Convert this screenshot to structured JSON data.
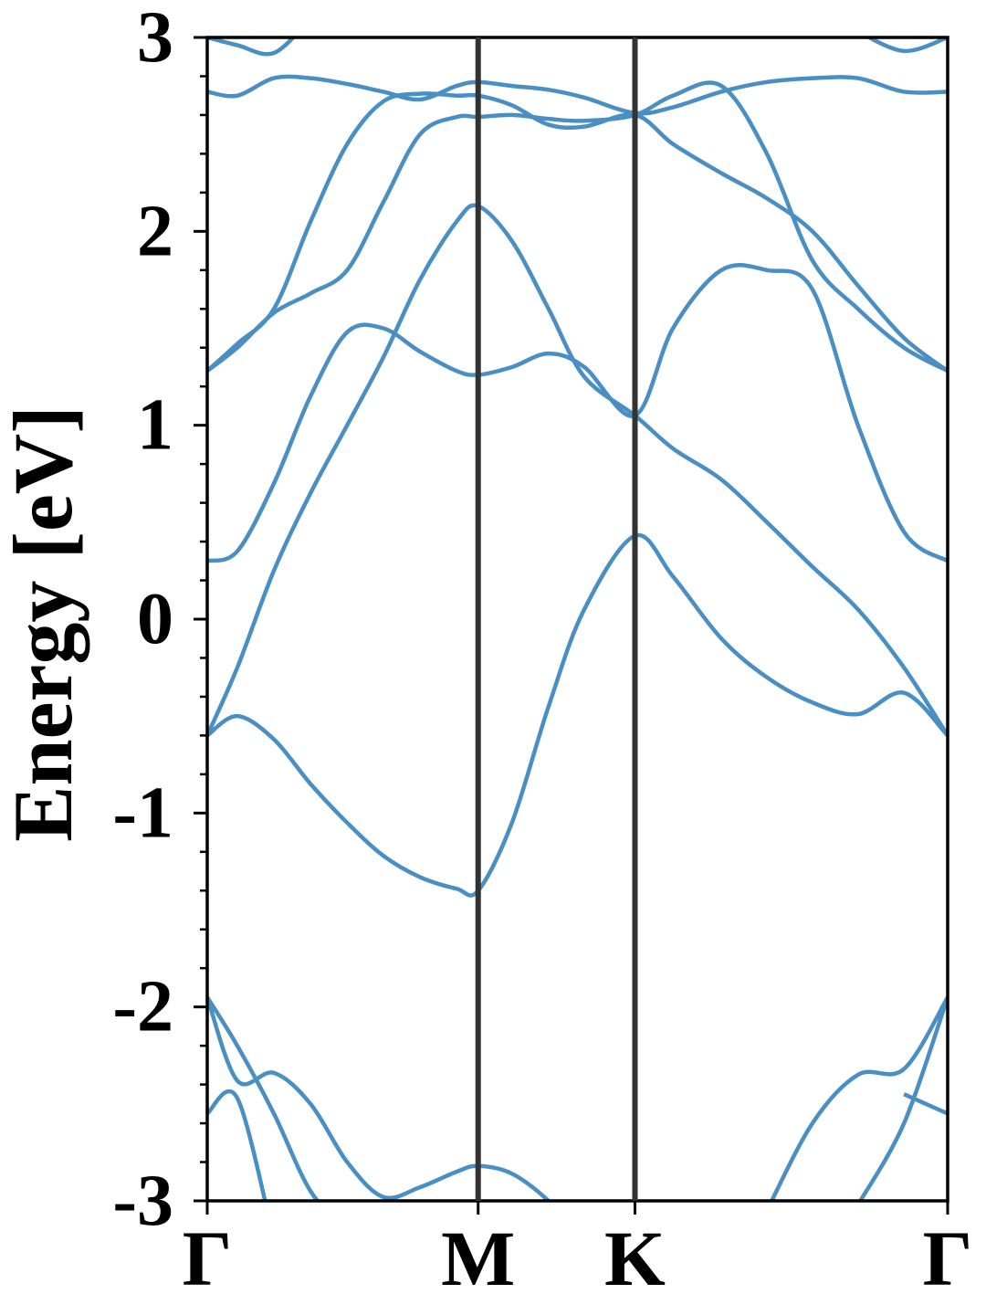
{
  "chart_data": {
    "type": "line",
    "ylabel": "Energy [eV]",
    "x": [
      0,
      0.064,
      0.142,
      0.22,
      0.298,
      0.375,
      0.453,
      0.531,
      0.577,
      0.649,
      0.727,
      0.803,
      0.911,
      0.992,
      1.095,
      1.192,
      1.289,
      1.386,
      1.484,
      1.577
    ],
    "xlim": [
      0,
      1.577
    ],
    "xticks": [
      {
        "value": 0,
        "label": "Γ"
      },
      {
        "value": 0.577,
        "label": "M"
      },
      {
        "value": 0.911,
        "label": "K"
      },
      {
        "value": 1.577,
        "label": "Γ"
      }
    ],
    "xtick_lines": true,
    "xtick_line_color": "#333333",
    "ylim": [
      -3,
      3
    ],
    "yticks": [
      -3,
      -2,
      -1,
      0,
      1,
      2,
      3
    ],
    "yminorticks": [
      -2.8,
      -2.6,
      -2.4,
      -2.2,
      -1.8,
      -1.6,
      -1.4,
      -1.2,
      -0.8,
      -0.6,
      -0.4,
      -0.2,
      0.2,
      0.4,
      0.6,
      0.8,
      1.2,
      1.4,
      1.6,
      1.8,
      2.2,
      2.4,
      2.6,
      2.8
    ],
    "color": "#4a8fc3",
    "series": [
      {
        "values": [
          -0.6,
          -0.5,
          -0.62,
          -0.85,
          -1.05,
          -1.22,
          -1.33,
          -1.39,
          -1.4,
          -1.05,
          -0.45,
          0.05,
          0.43,
          0.22,
          -0.1,
          -0.3,
          -0.43,
          -0.49,
          -0.38,
          -0.6
        ]
      },
      {
        "values": [
          -0.6,
          -0.25,
          0.25,
          0.65,
          1.0,
          1.35,
          1.75,
          2.05,
          2.13,
          1.95,
          1.6,
          1.25,
          1.05,
          0.88,
          0.72,
          0.5,
          0.27,
          0.05,
          -0.25,
          -0.6
        ]
      },
      {
        "values": [
          0.3,
          0.35,
          0.7,
          1.15,
          1.48,
          1.5,
          1.38,
          1.28,
          1.26,
          1.3,
          1.37,
          1.3,
          1.05,
          1.5,
          1.8,
          1.8,
          1.7,
          1.0,
          0.45,
          0.3
        ]
      },
      {
        "values": [
          1.28,
          1.4,
          1.58,
          1.68,
          1.8,
          2.15,
          2.5,
          2.59,
          2.59,
          2.6,
          2.58,
          2.57,
          2.6,
          2.7,
          2.75,
          2.4,
          1.85,
          1.6,
          1.4,
          1.28
        ]
      },
      {
        "values": [
          1.28,
          1.42,
          1.6,
          2.05,
          2.45,
          2.67,
          2.71,
          2.7,
          2.7,
          2.65,
          2.55,
          2.54,
          2.6,
          2.45,
          2.3,
          2.17,
          2.0,
          1.72,
          1.45,
          1.28
        ]
      },
      {
        "values": [
          2.72,
          2.7,
          2.79,
          2.79,
          2.76,
          2.72,
          2.68,
          2.75,
          2.77,
          2.75,
          2.73,
          2.69,
          2.61,
          2.64,
          2.72,
          2.77,
          2.79,
          2.79,
          2.72,
          2.72
        ]
      },
      {
        "values": [
          3.0,
          2.96,
          2.92,
          3.1,
          null,
          null,
          null,
          null,
          null,
          null,
          null,
          null,
          null,
          null,
          null,
          null,
          null,
          3.03,
          2.93,
          3.0
        ]
      },
      {
        "values": [
          -1.95,
          -2.38,
          -2.34,
          -2.5,
          -2.8,
          -2.98,
          -2.93,
          -2.85,
          -2.82,
          -2.86,
          -3.0,
          -3.2,
          null,
          null,
          null,
          -3.05,
          -2.6,
          -2.35,
          -2.32,
          -1.95
        ]
      },
      {
        "values": [
          -1.95,
          -2.2,
          -2.55,
          -2.95,
          -3.15,
          null,
          null,
          null,
          null,
          null,
          null,
          null,
          null,
          null,
          null,
          null,
          null,
          -3.02,
          -2.6,
          -1.95
        ]
      },
      {
        "values": [
          -2.55,
          -2.47,
          -3.2,
          null,
          null,
          null,
          null,
          null,
          null,
          null,
          null,
          null,
          null,
          null,
          null,
          null,
          null,
          null,
          -2.45,
          -2.55
        ]
      }
    ]
  }
}
